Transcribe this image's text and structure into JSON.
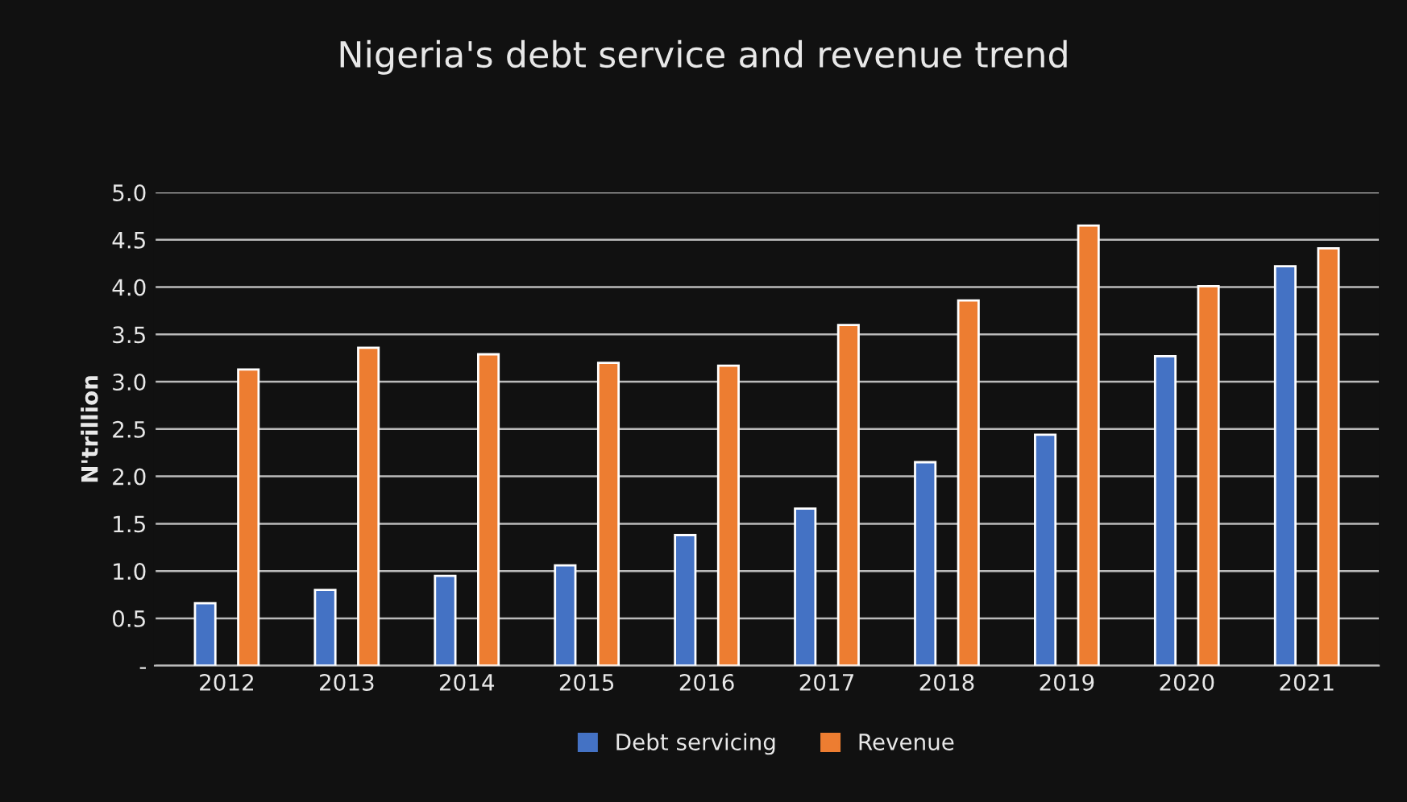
{
  "chart_data": {
    "type": "bar",
    "title": "Nigeria's debt service and revenue trend",
    "ylabel": "N'trillion",
    "categories": [
      "2012",
      "2013",
      "2014",
      "2015",
      "2016",
      "2017",
      "2018",
      "2019",
      "2020",
      "2021"
    ],
    "series": [
      {
        "name": "Debt servicing",
        "color": "#4472c4",
        "values": [
          0.66,
          0.8,
          0.95,
          1.06,
          1.38,
          1.66,
          2.15,
          2.44,
          3.27,
          4.22
        ]
      },
      {
        "name": "Revenue",
        "color": "#ed7d31",
        "values": [
          3.13,
          3.36,
          3.29,
          3.2,
          3.17,
          3.6,
          3.86,
          4.65,
          4.01,
          4.41
        ]
      }
    ],
    "ylim": [
      0,
      5
    ],
    "yticks": [
      {
        "value": 0,
        "label": "-"
      },
      {
        "value": 0.5,
        "label": "0.5"
      },
      {
        "value": 1,
        "label": "1.0"
      },
      {
        "value": 1.5,
        "label": "1.5"
      },
      {
        "value": 2,
        "label": "2.0"
      },
      {
        "value": 2.5,
        "label": "2.5"
      },
      {
        "value": 3,
        "label": "3.0"
      },
      {
        "value": 3.5,
        "label": "3.5"
      },
      {
        "value": 4,
        "label": "4.0"
      },
      {
        "value": 4.5,
        "label": "4.5"
      },
      {
        "value": 5,
        "label": "5.0"
      }
    ],
    "grid": "y",
    "legend": "bottom"
  }
}
